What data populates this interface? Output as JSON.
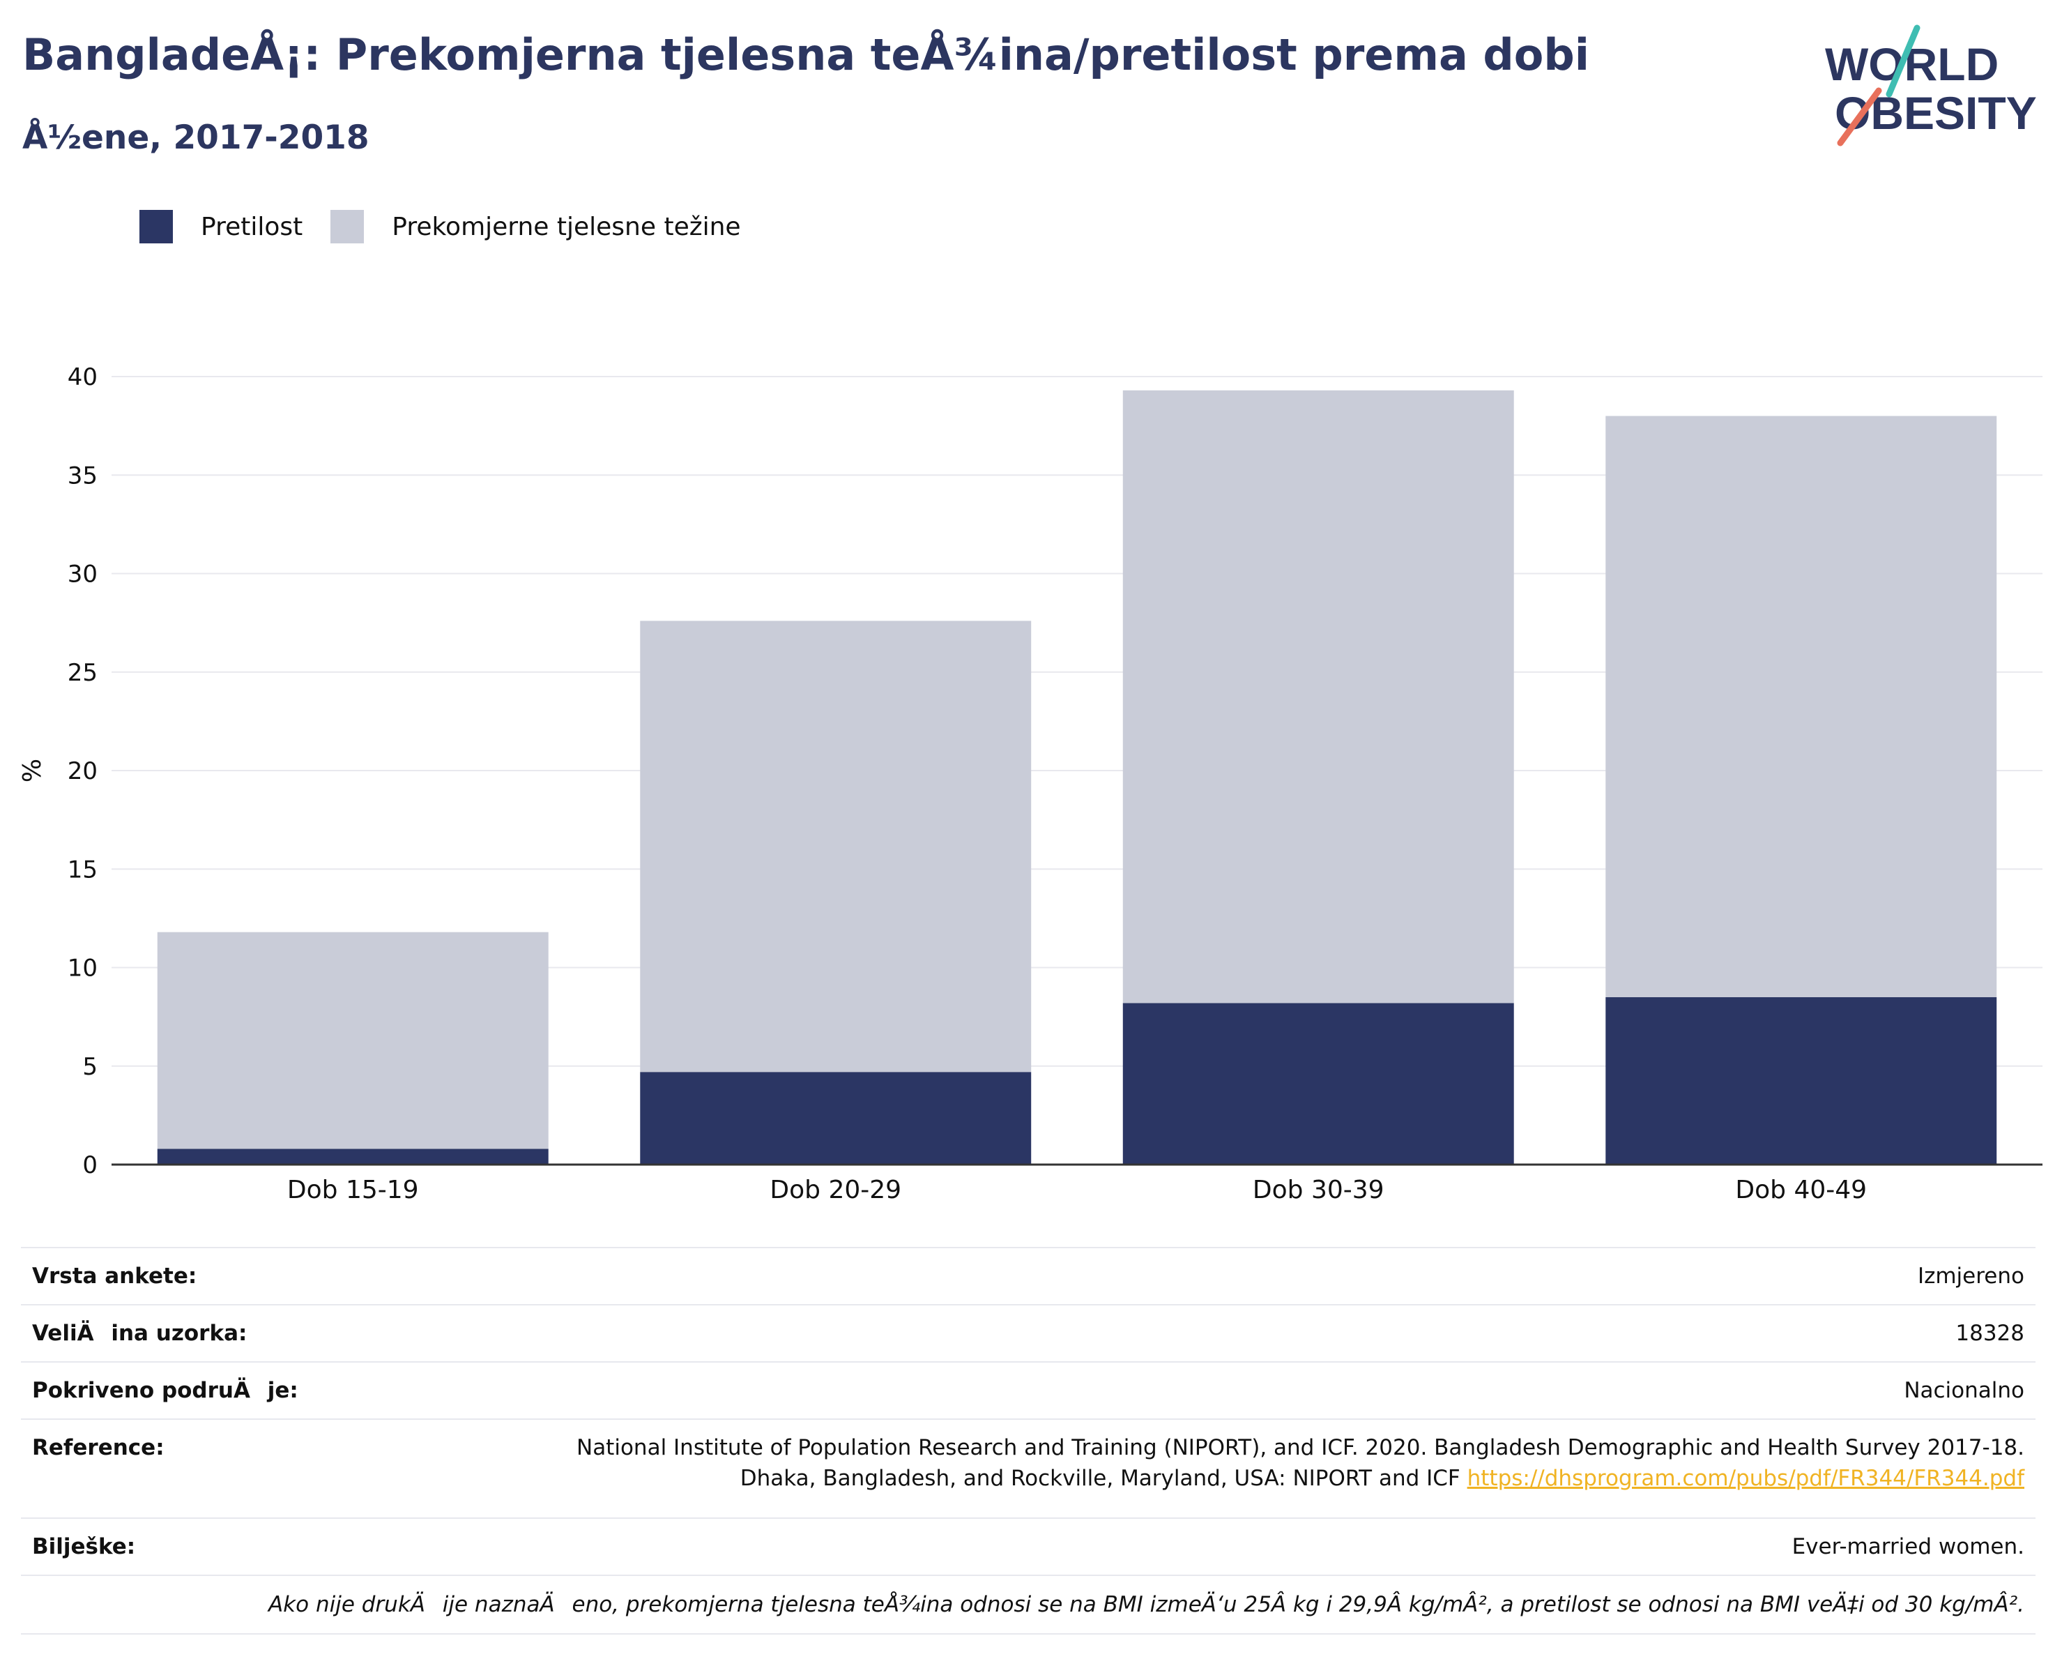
{
  "title": "BangladeÅ¡: Prekomjerna tjelesna teÅ¾ina/pretilost prema dobi",
  "subtitle": "Å½ene, 2017-2018",
  "logo": {
    "line1": "WORLD",
    "line2": "OBESITY"
  },
  "legend": [
    {
      "label": "Pretilost",
      "color": "#2b3664"
    },
    {
      "label": "Prekomjerne tjelesne težine",
      "color": "#c9ccd8"
    }
  ],
  "chart_data": {
    "type": "bar",
    "stacked": true,
    "categories": [
      "Dob 15-19",
      "Dob 20-29",
      "Dob 30-39",
      "Dob 40-49"
    ],
    "series": [
      {
        "name": "Pretilost",
        "values": [
          0.8,
          4.7,
          8.2,
          8.5
        ],
        "color": "#2b3664"
      },
      {
        "name": "Prekomjerne tjelesne težine",
        "values": [
          11.0,
          22.9,
          31.1,
          29.5
        ],
        "color": "#c9ccd8"
      }
    ],
    "ylabel": "%",
    "ylim": [
      0,
      40
    ],
    "yticks": [
      0,
      5,
      10,
      15,
      20,
      25,
      30,
      35,
      40
    ],
    "grid": true,
    "legend_position": "top-left"
  },
  "meta": {
    "survey_type": {
      "label": "Vrsta ankete:",
      "value": "Izmjereno"
    },
    "sample_size": {
      "label": "VeliÄina uzorka:",
      "value": "18328"
    },
    "coverage": {
      "label": "Pokriveno podruÄje:",
      "value": "Nacionalno"
    },
    "reference": {
      "label": "Reference:",
      "line1": "National Institute of Population Research and Training (NIPORT), and ICF. 2020. Bangladesh Demographic and Health Survey 2017-18.",
      "line2": "Dhaka, Bangladesh, and Rockville, Maryland, USA: NIPORT and ICF",
      "link": "https://dhsprogram.com/pubs/pdf/FR344/FR344.pdf"
    },
    "notes": {
      "label": "Bilješke:",
      "value": "Ever-married women."
    },
    "footnote": "Ako nije drukÄije naznaÄeno, prekomjerna tjelesna teÅ¾ina odnosi se na BMI izmeÄ‘u 25Â kg i 29,9Â kg/mÂ², a pretilost se odnosi na BMI veÄ‡i od 30 kg/mÂ²."
  }
}
